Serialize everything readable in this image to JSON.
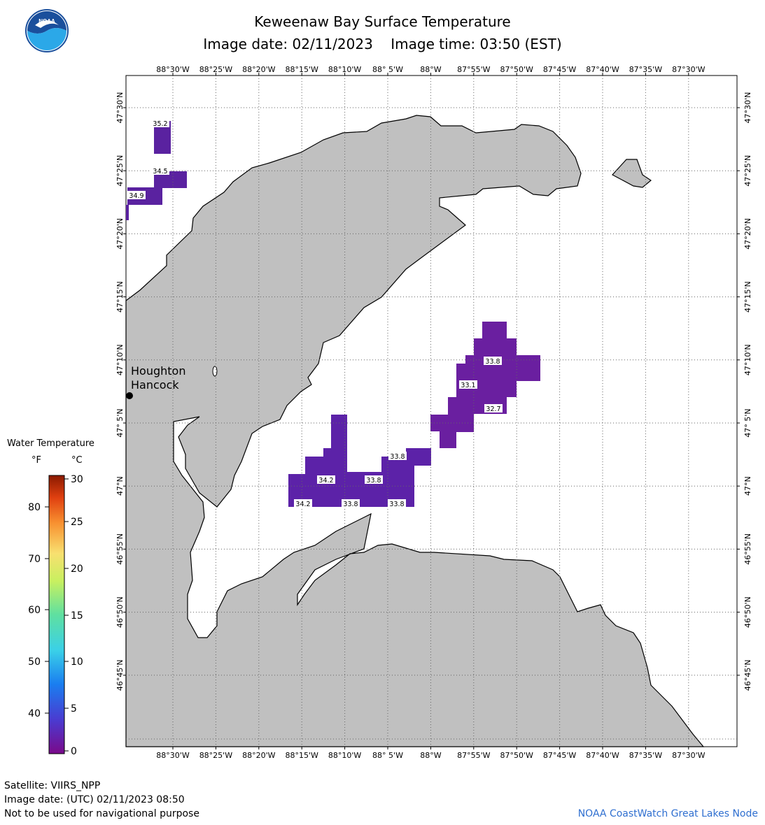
{
  "header": {
    "title": "Keweenaw Bay Surface Temperature",
    "date_label": "Image date: 02/11/2023",
    "time_label": "Image time: 03:50 (EST)"
  },
  "logo": {
    "text": "NOAA",
    "color_top": "#1a4f9c",
    "color_bottom": "#2ba8e8"
  },
  "map": {
    "land_color": "#c0c0c0",
    "lon_labels": [
      "88°30'W",
      "88°25'W",
      "88°20'W",
      "88°15'W",
      "88°10'W",
      "88° 5'W",
      "88°W",
      "87°55'W",
      "87°50'W",
      "87°45'W",
      "87°40'W",
      "87°35'W",
      "87°30'W"
    ],
    "lat_labels": [
      "47°30'N",
      "47°25'N",
      "47°20'N",
      "47°15'N",
      "47°10'N",
      "47° 5'N",
      "47°N",
      "46°55'N",
      "46°50'N",
      "46°45'N"
    ],
    "places": [
      {
        "name": "Houghton"
      },
      {
        "name": "Hancock"
      }
    ],
    "temperature_labels": [
      {
        "value": "35.2"
      },
      {
        "value": "34.5"
      },
      {
        "value": "34.9"
      },
      {
        "value": "33.8"
      },
      {
        "value": "33.1"
      },
      {
        "value": "32.7"
      },
      {
        "value": "33.8"
      },
      {
        "value": "34.2"
      },
      {
        "value": "33.8"
      },
      {
        "value": "34.2"
      },
      {
        "value": "33.8"
      },
      {
        "value": "33.8"
      }
    ]
  },
  "legend": {
    "title": "Water Temperature",
    "unit_f": "°F",
    "unit_c": "°C",
    "f_ticks": [
      "80",
      "70",
      "60",
      "50",
      "40"
    ],
    "c_ticks": [
      "30",
      "25",
      "20",
      "15",
      "10",
      "5",
      "0"
    ]
  },
  "footer": {
    "satellite": "Satellite: VIIRS_NPP",
    "utc_date": "Image date: (UTC) 02/11/2023  08:50",
    "disclaimer": "Not to be used for navigational purpose",
    "credit": "NOAA CoastWatch Great Lakes Node"
  }
}
